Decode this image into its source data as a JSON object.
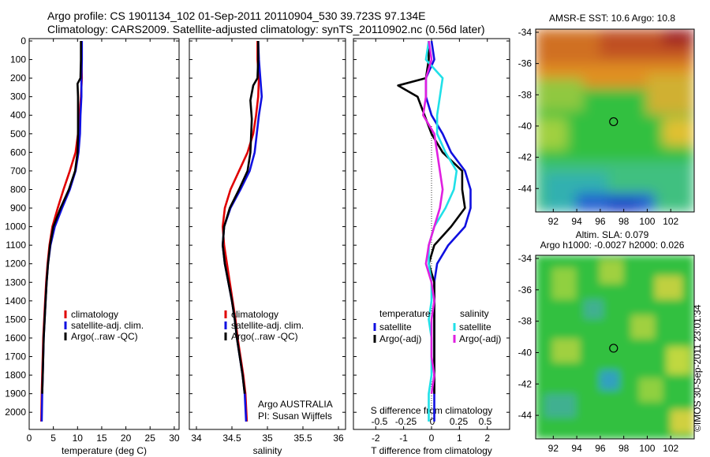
{
  "header": {
    "line1": "Argo profile: CS 1901134_102 01-Sep-2011 20110904_530 39.723S 97.134E",
    "line2": "Climatology: CARS2009. Satellite-adjusted climatology: synTS_20110902.nc (0.56d later)"
  },
  "credit": "©IMOS 30-Sep-2011 23:01:34",
  "colors": {
    "climatology": "#e00000",
    "satellite": "#1010e0",
    "argo": "#000000",
    "sat_salinity": "#20e0e8",
    "argo_salinity": "#e020e0"
  },
  "chart_data": [
    {
      "type": "line",
      "panel": "temperature",
      "xlabel": "temperature (deg C)",
      "ylabel": "",
      "xlim": [
        0,
        31
      ],
      "ylim": [
        2050,
        0
      ],
      "invert_y": true,
      "xticks": [
        0,
        5,
        10,
        15,
        20,
        25,
        30
      ],
      "yticks": [
        0,
        100,
        200,
        300,
        400,
        500,
        600,
        700,
        800,
        900,
        1000,
        1100,
        1200,
        1300,
        1400,
        1500,
        1600,
        1700,
        1800,
        1900,
        2000
      ],
      "series": [
        {
          "name": "climatology",
          "color": "#e00000",
          "x": [
            10.8,
            10.8,
            10.9,
            10.7,
            10.4,
            10.1,
            9.6,
            8.4,
            7.1,
            5.9,
            4.8,
            4.2,
            3.8,
            3.5,
            3.3,
            3.1,
            2.9,
            2.8,
            2.7,
            2.6,
            2.5
          ],
          "y": [
            0,
            100,
            200,
            300,
            400,
            500,
            600,
            700,
            800,
            900,
            1000,
            1100,
            1200,
            1300,
            1400,
            1500,
            1600,
            1700,
            1800,
            1900,
            2050
          ]
        },
        {
          "name": "satellite-adj. clim.",
          "color": "#1010e0",
          "x": [
            10.9,
            10.9,
            10.8,
            10.8,
            10.6,
            10.5,
            10.2,
            9.6,
            8.4,
            6.8,
            5.3,
            4.4,
            3.9,
            3.6,
            3.4,
            3.2,
            3.0,
            2.9,
            2.8,
            2.7,
            2.6
          ],
          "y": [
            0,
            100,
            200,
            300,
            400,
            500,
            600,
            700,
            800,
            900,
            1000,
            1100,
            1200,
            1300,
            1400,
            1500,
            1600,
            1700,
            1800,
            1900,
            2050
          ]
        },
        {
          "name": "Argo(..raw -QC)",
          "color": "#000000",
          "x": [
            10.7,
            10.7,
            10.6,
            10.0,
            10.1,
            10.1,
            10.0,
            9.5,
            8.2,
            6.5,
            5.0,
            4.3,
            3.9,
            3.6,
            3.4,
            3.2,
            3.0,
            2.9,
            2.8,
            2.7
          ],
          "y": [
            0,
            100,
            200,
            230,
            300,
            500,
            600,
            700,
            800,
            900,
            1000,
            1100,
            1200,
            1300,
            1400,
            1500,
            1600,
            1700,
            1800,
            1900
          ]
        }
      ],
      "legend": [
        "climatology",
        "satellite-adj. clim.",
        "Argo(..raw -QC)"
      ],
      "legend_position": "lower-right"
    },
    {
      "type": "line",
      "panel": "salinity",
      "xlabel": "salinity",
      "ylabel": "",
      "xlim": [
        33.9,
        36.1
      ],
      "ylim": [
        2050,
        0
      ],
      "invert_y": true,
      "xticks": [
        34,
        34.5,
        35,
        35.5,
        36
      ],
      "xtick_labels": [
        "34",
        "34.5",
        "35",
        "35.5",
        "36"
      ],
      "series": [
        {
          "name": "climatology",
          "color": "#e00000",
          "x": [
            34.86,
            34.86,
            34.88,
            34.87,
            34.84,
            34.8,
            34.72,
            34.6,
            34.48,
            34.4,
            34.37,
            34.39,
            34.43,
            34.47,
            34.51,
            34.55,
            34.58,
            34.62,
            34.66,
            34.69,
            34.71
          ],
          "y": [
            0,
            100,
            200,
            300,
            400,
            500,
            600,
            700,
            800,
            900,
            1000,
            1100,
            1200,
            1300,
            1400,
            1500,
            1600,
            1700,
            1800,
            1900,
            2050
          ]
        },
        {
          "name": "satellite-adj. clim.",
          "color": "#1010e0",
          "x": [
            34.87,
            34.88,
            34.9,
            34.92,
            34.88,
            34.85,
            34.82,
            34.75,
            34.62,
            34.48,
            34.39,
            34.37,
            34.4,
            34.45,
            34.5,
            34.54,
            34.57,
            34.61,
            34.65,
            34.68,
            34.7
          ],
          "y": [
            0,
            100,
            200,
            300,
            400,
            500,
            600,
            700,
            800,
            900,
            1000,
            1100,
            1200,
            1300,
            1400,
            1500,
            1600,
            1700,
            1800,
            1900,
            2050
          ]
        },
        {
          "name": "Argo(..raw -QC)",
          "color": "#000000",
          "x": [
            34.87,
            34.87,
            34.86,
            34.8,
            34.76,
            34.78,
            34.76,
            34.72,
            34.6,
            34.47,
            34.39,
            34.37,
            34.4,
            34.45,
            34.5,
            34.54,
            34.57,
            34.61,
            34.65,
            34.68
          ],
          "y": [
            0,
            100,
            200,
            240,
            320,
            420,
            600,
            700,
            800,
            900,
            1000,
            1100,
            1200,
            1300,
            1400,
            1500,
            1600,
            1700,
            1800,
            1900
          ]
        }
      ],
      "legend": [
        "climatology",
        "satellite-adj. clim.",
        "Argo(..raw -QC)"
      ],
      "legend_position": "lower-right",
      "annotation": [
        "Argo AUSTRALIA",
        "PI: Susan Wijffels"
      ]
    },
    {
      "type": "line",
      "panel": "difference",
      "xlabel": "T difference from climatology",
      "xlabel_top": "S difference from climatology",
      "xlim": [
        -2.8,
        2.8
      ],
      "ylim": [
        2050,
        0
      ],
      "invert_y": true,
      "xticks": [
        -2,
        -1,
        0,
        1,
        2
      ],
      "xticks_S": [
        -0.5,
        -0.25,
        0,
        0.25,
        0.5
      ],
      "xticks_S_labels": [
        "-0.5",
        "-0.25",
        "0",
        "0.25",
        "0.5"
      ],
      "series": [
        {
          "name": "temperature satellite",
          "color": "#1010e0",
          "x": [
            0.0,
            0.1,
            -0.2,
            -0.2,
            0.0,
            0.4,
            0.7,
            1.2,
            1.4,
            1.4,
            1.2,
            0.6,
            0.2,
            0.1,
            0.1,
            0.1,
            0.1,
            0.1,
            0.1,
            0.1,
            0.1
          ],
          "y": [
            0,
            100,
            200,
            300,
            400,
            500,
            600,
            700,
            800,
            900,
            1000,
            1100,
            1200,
            1300,
            1400,
            1500,
            1600,
            1700,
            1800,
            1900,
            2050
          ]
        },
        {
          "name": "temperature Argo(-adj)",
          "color": "#000000",
          "x": [
            -0.1,
            -0.1,
            -0.2,
            -1.2,
            -0.5,
            0.0,
            0.4,
            1.1,
            1.1,
            1.2,
            0.7,
            0.1,
            -0.1,
            0.1,
            0.1,
            0.1,
            0.1,
            0.1,
            0.1,
            0.1
          ],
          "y": [
            0,
            100,
            200,
            240,
            300,
            500,
            600,
            700,
            800,
            900,
            1000,
            1100,
            1200,
            1300,
            1400,
            1500,
            1600,
            1700,
            1800,
            1900
          ]
        },
        {
          "name": "salinity satellite",
          "color": "#20e0e8",
          "x": [
            -0.1,
            -0.2,
            0.4,
            0.3,
            0.2,
            0.2,
            0.5,
            0.9,
            0.8,
            0.5,
            0.1,
            -0.1,
            -0.1,
            0.0,
            0.0,
            -0.1,
            0.0,
            0.0,
            0.0,
            -0.1,
            -0.1
          ],
          "y": [
            0,
            100,
            200,
            300,
            400,
            500,
            600,
            700,
            800,
            900,
            1000,
            1100,
            1200,
            1300,
            1400,
            1500,
            1600,
            1700,
            1800,
            1900,
            2050
          ]
        },
        {
          "name": "salinity Argo(-adj)",
          "color": "#e020e0",
          "x": [
            -0.1,
            0.0,
            -0.2,
            -0.2,
            -0.3,
            0.1,
            0.2,
            0.3,
            0.4,
            0.3,
            0.1,
            -0.1,
            -0.2,
            0.0,
            0.1,
            0.0,
            0.0,
            0.0,
            0.1,
            0.0
          ],
          "y": [
            0,
            100,
            200,
            300,
            400,
            500,
            600,
            700,
            800,
            900,
            1000,
            1100,
            1200,
            1300,
            1400,
            1500,
            1600,
            1700,
            1800,
            1900
          ]
        }
      ],
      "legend_titles": [
        "temperature",
        "salinity"
      ],
      "legend": [
        "satellite",
        "Argo(-adj)",
        "satellite",
        "Argo(-adj)"
      ],
      "legend_position": "lower-middle"
    },
    {
      "type": "heatmap",
      "panel": "sst-map",
      "title": "AMSR-E SST: 10.6 Argo: 10.8",
      "xlim": [
        90.5,
        104
      ],
      "ylim": [
        -45.5,
        -33.8
      ],
      "xticks": [
        92,
        94,
        96,
        98,
        100,
        102
      ],
      "yticks": [
        -34,
        -36,
        -38,
        -40,
        -42,
        -44
      ],
      "marker": {
        "lon": 97.134,
        "lat": -39.723
      }
    },
    {
      "type": "heatmap",
      "panel": "sla-map",
      "title_lines": [
        "Altim. SLA: 0.079",
        "Argo h1000: -0.0027 h2000: 0.026"
      ],
      "xlim": [
        90.5,
        104
      ],
      "ylim": [
        -45.5,
        -33.8
      ],
      "xticks": [
        92,
        94,
        96,
        98,
        100,
        102
      ],
      "yticks": [
        -34,
        -36,
        -38,
        -40,
        -42,
        -44
      ],
      "marker": {
        "lon": 97.134,
        "lat": -39.723
      }
    }
  ]
}
